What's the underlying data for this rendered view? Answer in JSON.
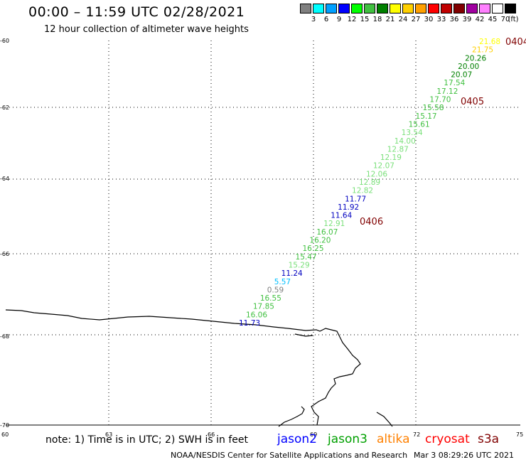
{
  "title": "00:00 – 11:59 UTC 02/28/2021",
  "subtitle": "12 hour collection of altimeter wave heights",
  "color_scale": {
    "labels": [
      "3",
      "6",
      "9",
      "12",
      "15",
      "18",
      "21",
      "24",
      "27",
      "30",
      "33",
      "36",
      "39",
      "42",
      "45",
      "70"
    ],
    "unit": "(ft)",
    "colors": [
      "#808080",
      "#00ffff",
      "#00a0ff",
      "#0000ff",
      "#00ff00",
      "#40c040",
      "#008000",
      "#ffff00",
      "#ffd000",
      "#ffa000",
      "#ff0000",
      "#c00000",
      "#800000",
      "#a000a0",
      "#ff80ff",
      "#ffffff",
      "#000000"
    ]
  },
  "axes": {
    "lat_labels": [
      "-60",
      "-62",
      "-64",
      "-66",
      "-68",
      "-70"
    ],
    "lon_labels": [
      "60",
      "63",
      "66",
      "69",
      "72",
      "75"
    ]
  },
  "track_points": [
    {
      "value": "21.68",
      "color": "#ffff00"
    },
    {
      "value": "21.75",
      "color": "#ffd000"
    },
    {
      "value": "20.26",
      "color": "#008000"
    },
    {
      "value": "20.00",
      "color": "#008000"
    },
    {
      "value": "20.07",
      "color": "#008000"
    },
    {
      "value": "17.54",
      "color": "#40c040"
    },
    {
      "value": "17.12",
      "color": "#40c040"
    },
    {
      "value": "17.70",
      "color": "#40c040"
    },
    {
      "value": "15.58",
      "color": "#40c040"
    },
    {
      "value": "15.17",
      "color": "#40c040"
    },
    {
      "value": "15.61",
      "color": "#40c040"
    },
    {
      "value": "13.54",
      "color": "#7be07b"
    },
    {
      "value": "14.00",
      "color": "#7be07b"
    },
    {
      "value": "12.87",
      "color": "#7be07b"
    },
    {
      "value": "12.19",
      "color": "#7be07b"
    },
    {
      "value": "12.07",
      "color": "#7be07b"
    },
    {
      "value": "12.06",
      "color": "#7be07b"
    },
    {
      "value": "12.89",
      "color": "#7be07b"
    },
    {
      "value": "12.82",
      "color": "#7be07b"
    },
    {
      "value": "11.77",
      "color": "#0000c0"
    },
    {
      "value": "11.92",
      "color": "#0000c0"
    },
    {
      "value": "11.64",
      "color": "#0000c0"
    },
    {
      "value": "12.91",
      "color": "#7be07b"
    },
    {
      "value": "16.07",
      "color": "#40c040"
    },
    {
      "value": "16.20",
      "color": "#40c040"
    },
    {
      "value": "16.25",
      "color": "#40c040"
    },
    {
      "value": "15.47",
      "color": "#40c040"
    },
    {
      "value": "15.29",
      "color": "#7be07b"
    },
    {
      "value": "11.24",
      "color": "#0000c0"
    },
    {
      "value": "5.57",
      "color": "#00c0ff"
    },
    {
      "value": "0.59",
      "color": "#808080"
    },
    {
      "value": "16.55",
      "color": "#40c040"
    },
    {
      "value": "17.85",
      "color": "#40c040"
    },
    {
      "value": "16.06",
      "color": "#40c040"
    },
    {
      "value": "11.73",
      "color": "#0000c0"
    }
  ],
  "time_labels": [
    {
      "text": "0404",
      "color": "#800000"
    },
    {
      "text": "0405",
      "color": "#800000"
    },
    {
      "text": "0406",
      "color": "#800000"
    }
  ],
  "note": "note:  1)  Time is in UTC;  2)  SWH is in feet",
  "satellites": [
    {
      "name": "jason2",
      "color": "#0000ff"
    },
    {
      "name": "jason3",
      "color": "#00a000"
    },
    {
      "name": "altika",
      "color": "#ff8000"
    },
    {
      "name": "cryosat",
      "color": "#ff0000"
    },
    {
      "name": "s3a",
      "color": "#800000"
    }
  ],
  "credit": "NOAA/NESDIS Center for Satellite Applications and Research",
  "date_stamp": "Mar  3 08:29:26 UTC 2021"
}
